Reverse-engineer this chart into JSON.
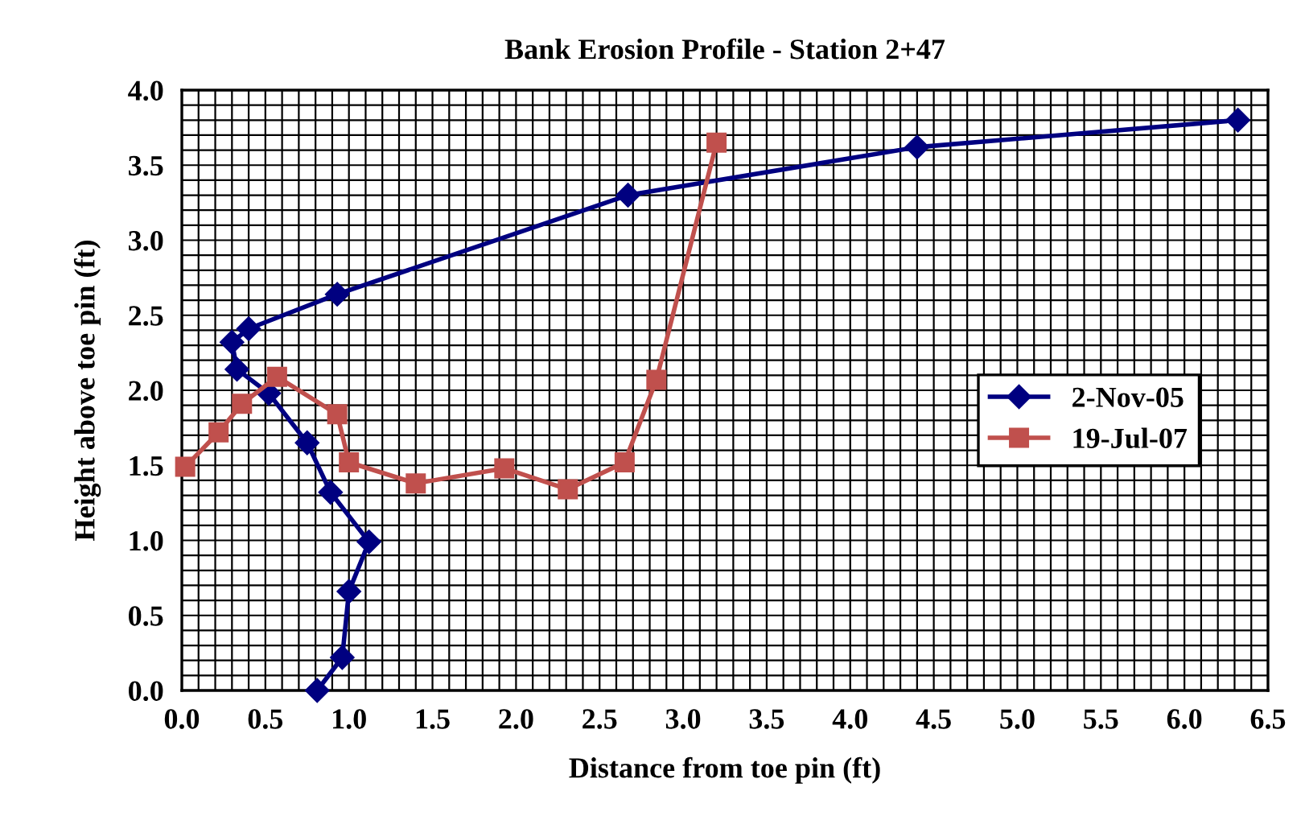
{
  "chart_data": {
    "type": "line",
    "title": "Bank Erosion Profile - Station 2+47",
    "xlabel": "Distance from toe pin (ft)",
    "ylabel": "Height above toe pin (ft)",
    "series": [
      {
        "name": "2-Nov-05",
        "color": "#000080",
        "marker": "diamond",
        "x": [
          0.81,
          0.96,
          1.0,
          1.12,
          0.89,
          0.75,
          0.52,
          0.33,
          0.3,
          0.4,
          0.93,
          2.67,
          4.4,
          6.32
        ],
        "values": [
          0.0,
          0.22,
          0.66,
          0.99,
          1.32,
          1.65,
          1.98,
          2.14,
          2.32,
          2.41,
          2.64,
          3.3,
          3.62,
          3.8
        ]
      },
      {
        "name": "19-Jul-07",
        "color": "#c0504d",
        "marker": "square",
        "x": [
          0.02,
          0.22,
          0.36,
          0.57,
          0.93,
          1.0,
          1.4,
          1.93,
          2.31,
          2.65,
          2.84,
          3.2
        ],
        "values": [
          1.49,
          1.72,
          1.91,
          2.09,
          1.84,
          1.52,
          1.38,
          1.48,
          1.34,
          1.52,
          2.07,
          3.65
        ]
      }
    ],
    "xlim": [
      0,
      6.5
    ],
    "ylim": [
      0,
      4
    ],
    "xticks": [
      {
        "value": 0,
        "label": "0.0"
      },
      {
        "value": 0.1,
        "label": null
      },
      {
        "value": 0.2,
        "label": null
      },
      {
        "value": 0.3,
        "label": null
      },
      {
        "value": 0.4,
        "label": null
      },
      {
        "value": 0.5,
        "label": "0.5"
      },
      {
        "value": 0.6,
        "label": null
      },
      {
        "value": 0.7,
        "label": null
      },
      {
        "value": 0.8,
        "label": null
      },
      {
        "value": 0.9,
        "label": null
      },
      {
        "value": 1,
        "label": "1.0"
      },
      {
        "value": 1.1,
        "label": null
      },
      {
        "value": 1.2,
        "label": null
      },
      {
        "value": 1.3,
        "label": null
      },
      {
        "value": 1.4,
        "label": null
      },
      {
        "value": 1.5,
        "label": "1.5"
      },
      {
        "value": 1.6,
        "label": null
      },
      {
        "value": 1.7,
        "label": null
      },
      {
        "value": 1.8,
        "label": null
      },
      {
        "value": 1.9,
        "label": null
      },
      {
        "value": 2,
        "label": "2.0"
      },
      {
        "value": 2.1,
        "label": null
      },
      {
        "value": 2.2,
        "label": null
      },
      {
        "value": 2.3,
        "label": null
      },
      {
        "value": 2.4,
        "label": null
      },
      {
        "value": 2.5,
        "label": "2.5"
      },
      {
        "value": 2.6,
        "label": null
      },
      {
        "value": 2.7,
        "label": null
      },
      {
        "value": 2.8,
        "label": null
      },
      {
        "value": 2.9,
        "label": null
      },
      {
        "value": 3,
        "label": "3.0"
      },
      {
        "value": 3.1,
        "label": null
      },
      {
        "value": 3.2,
        "label": null
      },
      {
        "value": 3.3,
        "label": null
      },
      {
        "value": 3.4,
        "label": null
      },
      {
        "value": 3.5,
        "label": "3.5"
      },
      {
        "value": 3.6,
        "label": null
      },
      {
        "value": 3.7,
        "label": null
      },
      {
        "value": 3.8,
        "label": null
      },
      {
        "value": 3.9,
        "label": null
      },
      {
        "value": 4,
        "label": "4.0"
      },
      {
        "value": 4.1,
        "label": null
      },
      {
        "value": 4.2,
        "label": null
      },
      {
        "value": 4.3,
        "label": null
      },
      {
        "value": 4.4,
        "label": null
      },
      {
        "value": 4.5,
        "label": "4.5"
      },
      {
        "value": 4.6,
        "label": null
      },
      {
        "value": 4.7,
        "label": null
      },
      {
        "value": 4.8,
        "label": null
      },
      {
        "value": 4.9,
        "label": null
      },
      {
        "value": 5,
        "label": "5.0"
      },
      {
        "value": 5.1,
        "label": null
      },
      {
        "value": 5.2,
        "label": null
      },
      {
        "value": 5.3,
        "label": null
      },
      {
        "value": 5.4,
        "label": null
      },
      {
        "value": 5.5,
        "label": "5.5"
      },
      {
        "value": 5.6,
        "label": null
      },
      {
        "value": 5.7,
        "label": null
      },
      {
        "value": 5.8,
        "label": null
      },
      {
        "value": 5.9,
        "label": null
      },
      {
        "value": 6,
        "label": "6.0"
      },
      {
        "value": 6.1,
        "label": null
      },
      {
        "value": 6.2,
        "label": null
      },
      {
        "value": 6.3,
        "label": null
      },
      {
        "value": 6.4,
        "label": null
      },
      {
        "value": 6.5,
        "label": "6.5"
      }
    ],
    "yticks": [
      {
        "value": 0,
        "label": "0.0"
      },
      {
        "value": 0.1,
        "label": null
      },
      {
        "value": 0.2,
        "label": null
      },
      {
        "value": 0.3,
        "label": null
      },
      {
        "value": 0.4,
        "label": null
      },
      {
        "value": 0.5,
        "label": "0.5"
      },
      {
        "value": 0.6,
        "label": null
      },
      {
        "value": 0.7,
        "label": null
      },
      {
        "value": 0.8,
        "label": null
      },
      {
        "value": 0.9,
        "label": null
      },
      {
        "value": 1,
        "label": "1.0"
      },
      {
        "value": 1.1,
        "label": null
      },
      {
        "value": 1.2,
        "label": null
      },
      {
        "value": 1.3,
        "label": null
      },
      {
        "value": 1.4,
        "label": null
      },
      {
        "value": 1.5,
        "label": "1.5"
      },
      {
        "value": 1.6,
        "label": null
      },
      {
        "value": 1.7,
        "label": null
      },
      {
        "value": 1.8,
        "label": null
      },
      {
        "value": 1.9,
        "label": null
      },
      {
        "value": 2,
        "label": "2.0"
      },
      {
        "value": 2.1,
        "label": null
      },
      {
        "value": 2.2,
        "label": null
      },
      {
        "value": 2.3,
        "label": null
      },
      {
        "value": 2.4,
        "label": null
      },
      {
        "value": 2.5,
        "label": "2.5"
      },
      {
        "value": 2.6,
        "label": null
      },
      {
        "value": 2.7,
        "label": null
      },
      {
        "value": 2.8,
        "label": null
      },
      {
        "value": 2.9,
        "label": null
      },
      {
        "value": 3,
        "label": "3.0"
      },
      {
        "value": 3.1,
        "label": null
      },
      {
        "value": 3.2,
        "label": null
      },
      {
        "value": 3.3,
        "label": null
      },
      {
        "value": 3.4,
        "label": null
      },
      {
        "value": 3.5,
        "label": "3.5"
      },
      {
        "value": 3.6,
        "label": null
      },
      {
        "value": 3.7,
        "label": null
      },
      {
        "value": 3.8,
        "label": null
      },
      {
        "value": 3.9,
        "label": null
      },
      {
        "value": 4,
        "label": "4.0"
      }
    ],
    "grid": true,
    "legend": "right",
    "line_style": "solid"
  }
}
